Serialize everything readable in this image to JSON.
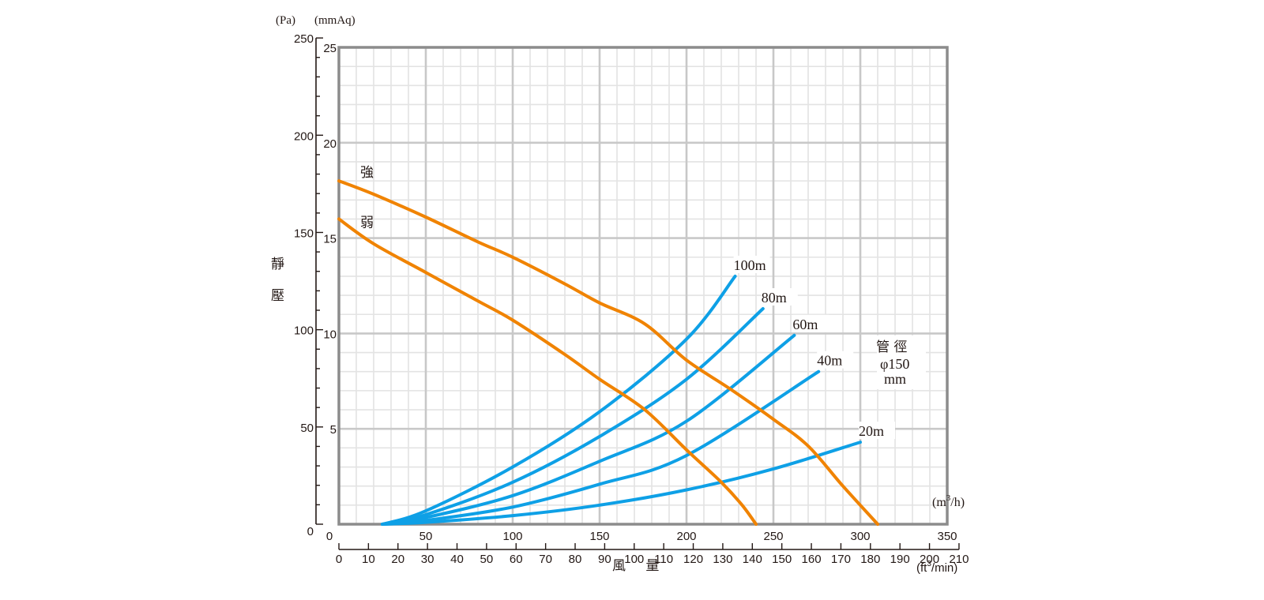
{
  "chart_data": {
    "type": "line",
    "title": "",
    "x_axis": {
      "label": "風 量",
      "unit": "(m³/h)",
      "unit_base": "(m",
      "unit_sup": "3",
      "unit_tail": "/h)",
      "range": [
        0,
        350
      ],
      "ticks": [
        0,
        50,
        100,
        150,
        200,
        250,
        300,
        350
      ],
      "minor_step": 10
    },
    "x2_axis": {
      "unit": "(ft³/min)",
      "unit_base": "(ft",
      "unit_sup": "3",
      "unit_tail": "/min)",
      "conversion_m3h_per_unit": 1.699,
      "ticks": [
        0,
        10,
        20,
        30,
        40,
        50,
        60,
        70,
        80,
        90,
        100,
        110,
        120,
        130,
        140,
        150,
        160,
        170,
        180,
        190,
        200,
        210
      ]
    },
    "y_axis": {
      "label": "靜 壓",
      "label_chars": [
        "靜",
        "壓"
      ],
      "unit": "(mmAq)",
      "range": [
        0,
        25
      ],
      "ticks": [
        0,
        5,
        10,
        15,
        20,
        25
      ],
      "tick_labels": [
        "",
        "5",
        "10",
        "15",
        "20",
        "25"
      ],
      "minor_step": 1
    },
    "y2_axis": {
      "unit": "(Pa)",
      "range": [
        0,
        250
      ],
      "ticks": [
        0,
        50,
        100,
        150,
        200,
        250
      ],
      "minor_step": 10,
      "conversion_pa_per_mmaq": 9.80665
    },
    "grid": true,
    "series": [
      {
        "name": "強",
        "kind": "fan-curve",
        "color": "#f08300",
        "x": [
          0,
          20,
          50,
          80,
          100,
          130,
          150,
          176,
          200,
          225,
          250,
          270,
          290,
          310
        ],
        "y": [
          18.0,
          17.3,
          16.1,
          14.8,
          14.0,
          12.6,
          11.6,
          10.5,
          8.6,
          7.1,
          5.5,
          4.1,
          2.0,
          0
        ]
      },
      {
        "name": "弱",
        "kind": "fan-curve",
        "color": "#f08300",
        "x": [
          0,
          20,
          50,
          80,
          100,
          130,
          150,
          176,
          200,
          220,
          232,
          240
        ],
        "y": [
          16.0,
          14.7,
          13.2,
          11.7,
          10.7,
          8.9,
          7.6,
          6.0,
          3.9,
          2.2,
          1.0,
          0
        ]
      },
      {
        "name": "100m",
        "kind": "duct-resistance",
        "color": "#0ea0e6",
        "x": [
          25,
          50,
          100,
          150,
          200,
          228
        ],
        "y": [
          0,
          0.7,
          3.0,
          5.9,
          9.7,
          13.0
        ]
      },
      {
        "name": "80m",
        "kind": "duct-resistance",
        "color": "#0ea0e6",
        "x": [
          25,
          50,
          100,
          150,
          200,
          244
        ],
        "y": [
          0,
          0.5,
          2.2,
          4.6,
          7.6,
          11.3
        ]
      },
      {
        "name": "60m",
        "kind": "duct-resistance",
        "color": "#0ea0e6",
        "x": [
          25,
          50,
          100,
          150,
          200,
          262
        ],
        "y": [
          0,
          0.35,
          1.5,
          3.3,
          5.4,
          9.9
        ]
      },
      {
        "name": "40m",
        "kind": "duct-resistance",
        "color": "#0ea0e6",
        "x": [
          25,
          50,
          100,
          150,
          200,
          276
        ],
        "y": [
          0,
          0.2,
          0.9,
          2.1,
          3.6,
          8.0
        ]
      },
      {
        "name": "20m",
        "kind": "duct-resistance",
        "color": "#0ea0e6",
        "x": [
          25,
          50,
          100,
          150,
          200,
          250,
          300
        ],
        "y": [
          0,
          0.1,
          0.45,
          1.0,
          1.8,
          2.9,
          4.3
        ]
      }
    ],
    "annotations": {
      "duct_title": "管 徑",
      "duct_size": "φ150",
      "duct_unit": "mm"
    },
    "legend": "inline-labels"
  }
}
